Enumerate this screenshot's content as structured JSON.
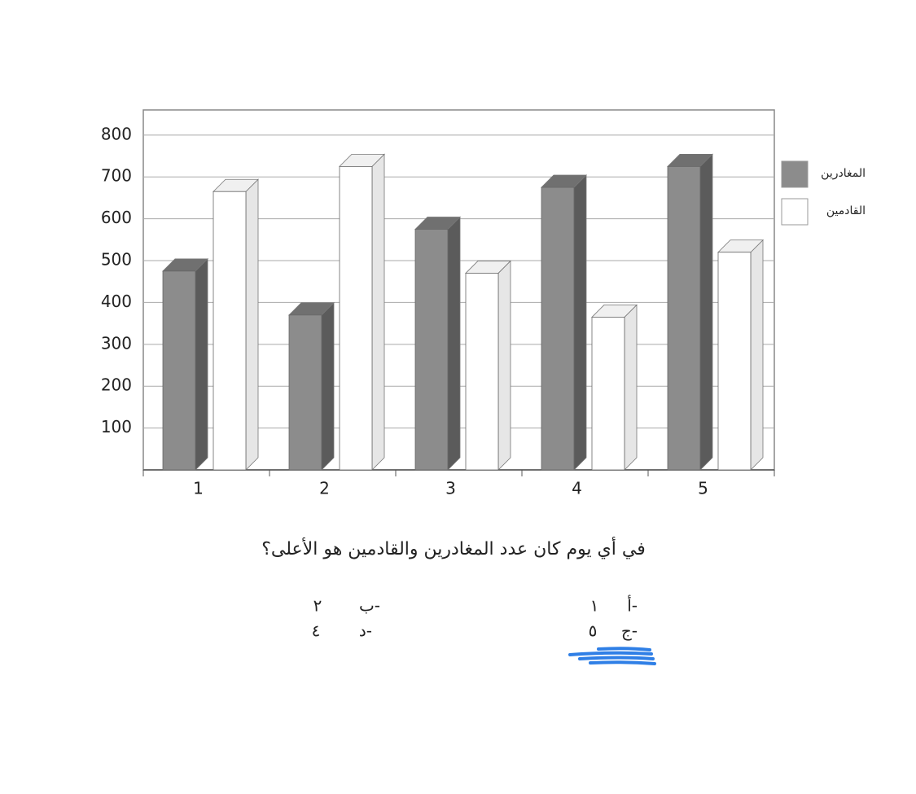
{
  "chart_data": {
    "type": "bar3d",
    "categories": [
      "1",
      "2",
      "3",
      "4",
      "5"
    ],
    "series": [
      {
        "name": "المغادرين",
        "color": "#8c8c8c",
        "values": [
          475,
          370,
          575,
          675,
          725
        ]
      },
      {
        "name": "القادمين",
        "color": "#ffffff",
        "values": [
          665,
          725,
          470,
          365,
          520
        ]
      }
    ],
    "ylim": [
      0,
      860
    ],
    "yticks": [
      100,
      200,
      300,
      400,
      500,
      600,
      700,
      800
    ],
    "grid": true,
    "legend": "right"
  },
  "question": "في أي يوم كان عدد المغادرين والقادمين هو الأعلى؟",
  "options": [
    {
      "label": "أ-",
      "value": "١"
    },
    {
      "label": "ب-",
      "value": "٢"
    },
    {
      "label": "ج-",
      "value": "٥"
    },
    {
      "label": "د-",
      "value": "٤"
    }
  ]
}
